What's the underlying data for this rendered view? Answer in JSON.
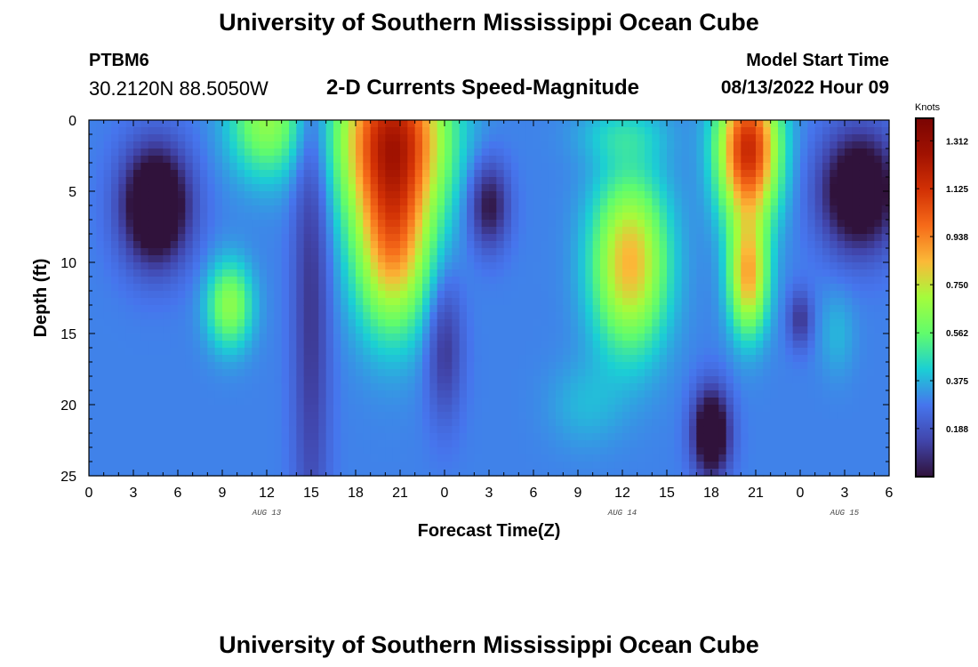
{
  "header": {
    "title": "University of Southern Mississippi Ocean Cube",
    "station_id": "PTBM6",
    "station_coords": "30.2120N  88.5050W",
    "subtitle": "2-D Currents Speed-Magnitude",
    "model_start_label": "Model Start Time",
    "model_start_value": "08/13/2022 Hour 09"
  },
  "footer": {
    "title": "University of Southern Mississippi Ocean Cube"
  },
  "chart_data": {
    "type": "heatmap",
    "xlabel": "Forecast Time(Z)",
    "ylabel": "Depth (ft)",
    "x_ticks": [
      "0",
      "3",
      "6",
      "9",
      "12",
      "15",
      "18",
      "21",
      "0",
      "3",
      "6",
      "9",
      "12",
      "15",
      "18",
      "21",
      "0",
      "3",
      "6"
    ],
    "x_date_labels": [
      {
        "label": "AUG 13",
        "tick_index": 12
      },
      {
        "label": "AUG 14",
        "tick_index": 36
      },
      {
        "label": "AUG 15",
        "tick_index": 51
      }
    ],
    "y_ticks": [
      "0",
      "5",
      "10",
      "15",
      "20",
      "25"
    ],
    "ylim": [
      0,
      25
    ],
    "colorbar": {
      "title": "Knots",
      "labels": [
        "1.312",
        "1.125",
        "0.938",
        "0.750",
        "0.562",
        "0.375",
        "0.188"
      ],
      "range": [
        0,
        1.4
      ]
    },
    "features": [
      {
        "t": 4.5,
        "d": 6,
        "st": 2.2,
        "sd": 4,
        "v": -0.55
      },
      {
        "t": 12,
        "d": 0,
        "st": 2.5,
        "sd": 4,
        "v": 0.35
      },
      {
        "t": 9.5,
        "d": 13,
        "st": 1.5,
        "sd": 3,
        "v": 0.35
      },
      {
        "t": 15,
        "d": 12,
        "st": 1.2,
        "sd": 20,
        "v": -0.2
      },
      {
        "t": 20.5,
        "d": 1,
        "st": 3.5,
        "sd": 6,
        "v": 0.85
      },
      {
        "t": 20.5,
        "d": 9,
        "st": 2.5,
        "sd": 6,
        "v": 0.55
      },
      {
        "t": 27,
        "d": 6,
        "st": 1.3,
        "sd": 3,
        "v": -0.3
      },
      {
        "t": 24,
        "d": 16,
        "st": 1.2,
        "sd": 5,
        "v": -0.2
      },
      {
        "t": 36.5,
        "d": 10,
        "st": 2.5,
        "sd": 6,
        "v": 0.55
      },
      {
        "t": 36,
        "d": 1,
        "st": 3,
        "sd": 2,
        "v": 0.12
      },
      {
        "t": 42,
        "d": 22,
        "st": 1.2,
        "sd": 3,
        "v": -0.5
      },
      {
        "t": 44.5,
        "d": 2,
        "st": 2,
        "sd": 5,
        "v": 0.85
      },
      {
        "t": 44.5,
        "d": 11,
        "st": 1.3,
        "sd": 4,
        "v": 0.55
      },
      {
        "t": 52,
        "d": 5,
        "st": 2.5,
        "sd": 4,
        "v": -0.5
      },
      {
        "t": 48,
        "d": 14,
        "st": 0.8,
        "sd": 2,
        "v": -0.2
      },
      {
        "t": 50.5,
        "d": 15,
        "st": 1.2,
        "sd": 3,
        "v": 0.08
      },
      {
        "t": 33.5,
        "d": 20,
        "st": 2.5,
        "sd": 3,
        "v": 0.08
      }
    ],
    "base_value": 0.3
  }
}
